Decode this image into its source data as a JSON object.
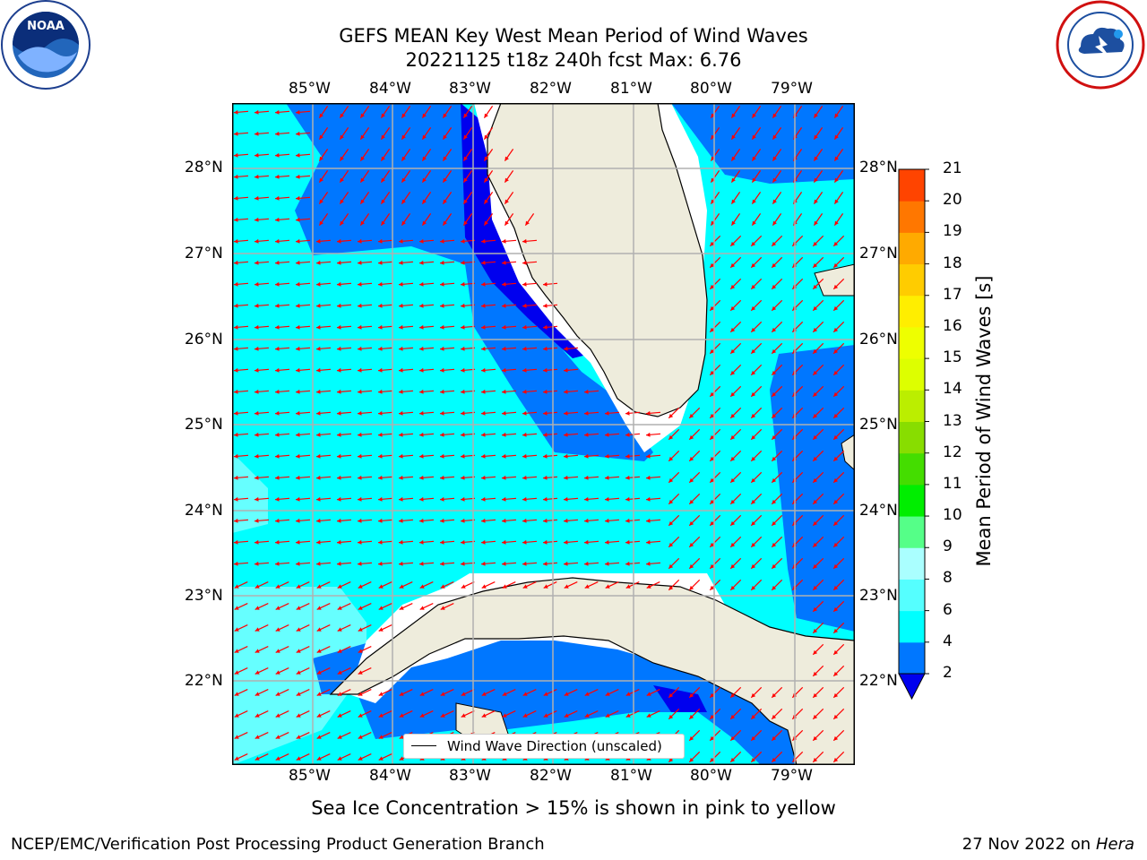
{
  "title": {
    "line1": "GEFS MEAN Key West Mean Period of Wind Waves",
    "line2": "20221125 t18z 240h fcst   Max: 6.76"
  },
  "logos": {
    "left": {
      "text": "NOAA",
      "ring_text": "NATIONAL OCEANIC AND ATMOSPHERIC ADMINISTRATION · U.S. DEPARTMENT OF COMMERCE"
    },
    "right": {
      "ring_text": "NATIONAL WEATHER SERVICE"
    }
  },
  "map": {
    "lon_labels": [
      "85°W",
      "84°W",
      "83°W",
      "82°W",
      "81°W",
      "80°W",
      "79°W"
    ],
    "lat_labels": [
      "28°N",
      "27°N",
      "26°N",
      "25°N",
      "24°N",
      "23°N",
      "22°N"
    ],
    "legend_label": "Wind Wave Direction (unscaled)",
    "colors": {
      "land": "#eeecdc",
      "cyan": "#00ffff",
      "aqua_light": "#66ffff",
      "blue_mid": "#0077ff",
      "blue_deep": "#0000ee",
      "arrow": "#ff0000",
      "grid": "#b0b0b0"
    }
  },
  "colorbar": {
    "label": "Mean Period of Wind Waves [s]",
    "ticks": [
      "2",
      "4",
      "6",
      "8",
      "9",
      "10",
      "11",
      "12",
      "13",
      "14",
      "15",
      "16",
      "17",
      "18",
      "19",
      "20",
      "21"
    ],
    "colors": [
      "#0077ff",
      "#00ffff",
      "#55ffff",
      "#aaffff",
      "#55ff88",
      "#00ee00",
      "#44dd00",
      "#88dd00",
      "#bbee00",
      "#ddff00",
      "#eeff00",
      "#ffee00",
      "#ffcc00",
      "#ffaa00",
      "#ff7700",
      "#ff4400",
      "#ff1100"
    ],
    "under_color": "#0000ee"
  },
  "caption": "Sea Ice Concentration > 15% is shown in pink to yellow",
  "footer": {
    "left": "NCEP/EMC/Verification Post Processing Product Generation Branch",
    "right_date": "27 Nov 2022 on",
    "right_host": "Hera"
  }
}
